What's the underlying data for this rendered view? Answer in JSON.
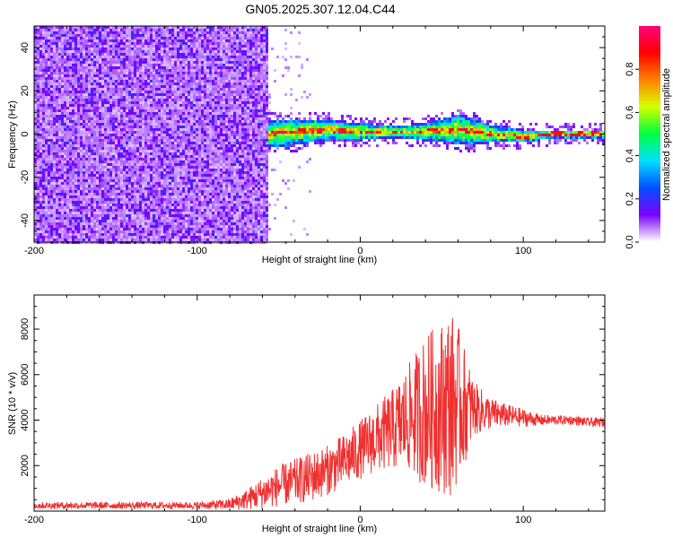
{
  "title": "GN05.2025.307.12.04.C44",
  "chart_data": [
    {
      "type": "heatmap",
      "xlabel": "Height of straight line (km)",
      "ylabel": "Frequency (Hz)",
      "xlim": [
        -200,
        150
      ],
      "ylim": [
        -50,
        50
      ],
      "xticks": [
        "-200",
        "-100",
        "0",
        "100"
      ],
      "yticks": [
        "-40",
        "-20",
        "0",
        "20",
        "40"
      ],
      "colorbar": {
        "label": "Normalized spectral amplitude",
        "range": [
          0,
          1
        ],
        "ticks": [
          "0.0",
          "0.2",
          "0.4",
          "0.6",
          "0.8"
        ],
        "colors": [
          "#ffffff",
          "#7a00ff",
          "#0050ff",
          "#00e0ff",
          "#00ff40",
          "#d8ff00",
          "#ff8000",
          "#ff0000",
          "#ff0080"
        ]
      },
      "noise_region": {
        "x_range": [
          -200,
          -57
        ],
        "freq_range": [
          -50,
          50
        ],
        "typical_amplitude": 0.15
      },
      "signal_band": {
        "x_range": [
          -57,
          150
        ],
        "centerline": {
          "x": [
            -57,
            -40,
            -20,
            0,
            20,
            40,
            60,
            70,
            80,
            100,
            120,
            150
          ],
          "freq": [
            0,
            1,
            2,
            1,
            1,
            1,
            2,
            1,
            0,
            -1,
            0,
            0
          ]
        },
        "halfwidth_hz": {
          "x": [
            -57,
            -40,
            -20,
            0,
            20,
            40,
            60,
            70,
            80,
            100,
            120,
            150
          ],
          "hz": [
            7,
            6,
            5,
            4,
            3,
            4,
            7,
            6,
            4,
            3,
            2,
            2
          ]
        }
      }
    },
    {
      "type": "line",
      "xlabel": "Height of straight line (km)",
      "ylabel": "SNR (10 * v/v)",
      "xlim": [
        -200,
        150
      ],
      "ylim": [
        0,
        9500
      ],
      "xticks": [
        "-200",
        "-100",
        "0",
        "100"
      ],
      "yticks": [
        "2000",
        "4000",
        "6000",
        "8000"
      ],
      "color": "#f03030",
      "series": [
        {
          "x": [
            -200,
            -150,
            -100,
            -80,
            -70,
            -60,
            -50,
            -40,
            -30,
            -20,
            -10,
            0,
            10,
            20,
            30,
            40,
            50,
            55,
            60,
            70,
            80,
            90,
            100,
            110,
            120,
            130,
            140,
            150
          ],
          "mean": [
            250,
            250,
            250,
            300,
            500,
            800,
            1100,
            1300,
            1500,
            1800,
            2200,
            2700,
            3200,
            3600,
            4100,
            4400,
            4600,
            4800,
            4700,
            4500,
            4300,
            4200,
            4100,
            4000,
            4000,
            4000,
            3900,
            3900
          ],
          "spread": [
            150,
            150,
            150,
            250,
            450,
            700,
            900,
            1000,
            1100,
            1100,
            1200,
            1300,
            1500,
            1800,
            2400,
            3400,
            3800,
            4200,
            3500,
            1200,
            700,
            500,
            400,
            250,
            200,
            200,
            200,
            200
          ]
        }
      ]
    }
  ]
}
